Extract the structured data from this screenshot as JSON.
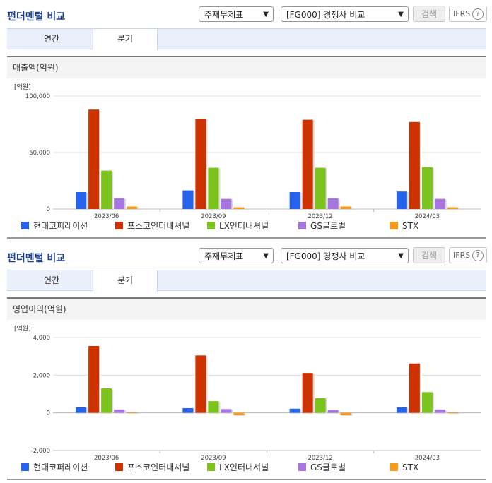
{
  "sections": [
    {
      "title": "펀더멘털 비교",
      "item_select": "주재무제표",
      "compare_select": "[FG000] 경쟁사 비교",
      "search_label": "검색",
      "ifrs_label": "IFRS",
      "help_symbol": "?",
      "tabs": [
        "연간",
        "분기"
      ],
      "active_tab": "분기",
      "chart_title": "매출액(억원)",
      "unit": "[억원]",
      "legend": [
        "현대코퍼레이션",
        "포스코인터내셔널",
        "LX인터내셔널",
        "GS글로벌",
        "STX"
      ],
      "colors": [
        "#2563eb",
        "#cc3300",
        "#7cc31d",
        "#a875e0",
        "#f79a1b"
      ]
    },
    {
      "title": "펀더멘털 비교",
      "item_select": "주재무제표",
      "compare_select": "[FG000] 경쟁사 비교",
      "search_label": "검색",
      "ifrs_label": "IFRS",
      "help_symbol": "?",
      "tabs": [
        "연간",
        "분기"
      ],
      "active_tab": "분기",
      "chart_title": "영업이익(억원)",
      "unit": "[억원]",
      "legend": [
        "현대코퍼레이션",
        "포스코인터내셔널",
        "LX인터내셔널",
        "GS글로벌",
        "STX"
      ],
      "colors": [
        "#2563eb",
        "#cc3300",
        "#7cc31d",
        "#a875e0",
        "#f79a1b"
      ]
    }
  ],
  "chart_data": [
    {
      "type": "bar",
      "title": "매출액(억원)",
      "ylabel": "[억원]",
      "categories": [
        "2023/06",
        "2023/09",
        "2023/12",
        "2024/03"
      ],
      "ylim": [
        0,
        100000
      ],
      "yticks": [
        0,
        50000,
        100000
      ],
      "ytick_labels": [
        "0",
        "50,000",
        "100,000"
      ],
      "series": [
        {
          "name": "현대코퍼레이션",
          "values": [
            15000,
            16500,
            15000,
            15500
          ]
        },
        {
          "name": "포스코인터내셔널",
          "values": [
            88000,
            80000,
            79000,
            77000
          ]
        },
        {
          "name": "LX인터내셔널",
          "values": [
            34000,
            36500,
            36500,
            37000
          ]
        },
        {
          "name": "GS글로벌",
          "values": [
            9500,
            9000,
            9500,
            9000
          ]
        },
        {
          "name": "STX",
          "values": [
            2200,
            1500,
            2200,
            1500
          ]
        }
      ]
    },
    {
      "type": "bar",
      "title": "영업이익(억원)",
      "ylabel": "[억원]",
      "categories": [
        "2023/06",
        "2023/09",
        "2023/12",
        "2024/03"
      ],
      "ylim": [
        -2000,
        4000
      ],
      "yticks": [
        -2000,
        0,
        2000,
        4000
      ],
      "ytick_labels": [
        "-2,000",
        "0",
        "2,000",
        "4,000"
      ],
      "series": [
        {
          "name": "현대코퍼레이션",
          "values": [
            300,
            250,
            220,
            300
          ]
        },
        {
          "name": "포스코인터내셔널",
          "values": [
            3550,
            3050,
            2120,
            2620
          ]
        },
        {
          "name": "LX인터내셔널",
          "values": [
            1300,
            620,
            780,
            1100
          ]
        },
        {
          "name": "GS글로벌",
          "values": [
            180,
            200,
            150,
            180
          ]
        },
        {
          "name": "STX",
          "values": [
            30,
            -120,
            -120,
            20
          ]
        }
      ]
    }
  ]
}
